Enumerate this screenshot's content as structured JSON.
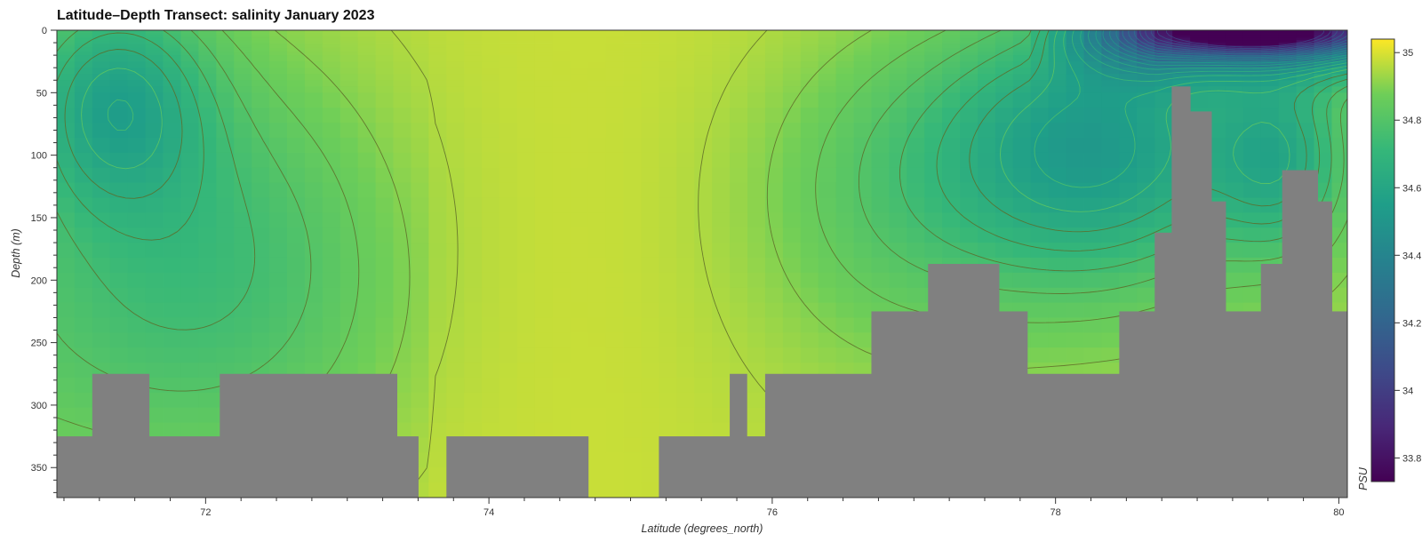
{
  "chart_data": {
    "type": "heatmap",
    "title": "Latitude–Depth Transect: salinity January 2023",
    "xlabel": "Latitude (degrees_north)",
    "ylabel": "Depth (m)",
    "colorbar_label": "PSU",
    "colormap": "viridis",
    "xlim": [
      70.95,
      80.06
    ],
    "ylim": [
      374,
      0
    ],
    "x_ticks": [
      72,
      74,
      76,
      78,
      80
    ],
    "y_ticks": [
      0,
      50,
      100,
      150,
      200,
      250,
      300,
      350
    ],
    "color_range": [
      33.73,
      35.04
    ],
    "colorbar_ticks": [
      33.8,
      34,
      34.2,
      34.4,
      34.6,
      34.8,
      35
    ],
    "land_color": "#808080",
    "bathymetry": [
      {
        "lat_from": 70.95,
        "lat_to": 71.2,
        "bottom_depth": 325
      },
      {
        "lat_from": 71.2,
        "lat_to": 71.6,
        "bottom_depth": 275
      },
      {
        "lat_from": 71.6,
        "lat_to": 72.1,
        "bottom_depth": 325
      },
      {
        "lat_from": 72.1,
        "lat_to": 73.35,
        "bottom_depth": 275
      },
      {
        "lat_from": 73.35,
        "lat_to": 73.5,
        "bottom_depth": 325
      },
      {
        "lat_from": 73.5,
        "lat_to": 73.7,
        "bottom_depth": 374
      },
      {
        "lat_from": 73.7,
        "lat_to": 74.7,
        "bottom_depth": 325
      },
      {
        "lat_from": 74.7,
        "lat_to": 75.2,
        "bottom_depth": 374
      },
      {
        "lat_from": 75.2,
        "lat_to": 75.7,
        "bottom_depth": 325
      },
      {
        "lat_from": 75.7,
        "lat_to": 75.82,
        "bottom_depth": 275
      },
      {
        "lat_from": 75.82,
        "lat_to": 75.95,
        "bottom_depth": 325
      },
      {
        "lat_from": 75.95,
        "lat_to": 76.7,
        "bottom_depth": 275
      },
      {
        "lat_from": 76.7,
        "lat_to": 77.1,
        "bottom_depth": 225
      },
      {
        "lat_from": 77.1,
        "lat_to": 77.6,
        "bottom_depth": 187
      },
      {
        "lat_from": 77.6,
        "lat_to": 77.8,
        "bottom_depth": 225
      },
      {
        "lat_from": 77.8,
        "lat_to": 78.45,
        "bottom_depth": 275
      },
      {
        "lat_from": 78.45,
        "lat_to": 78.7,
        "bottom_depth": 225
      },
      {
        "lat_from": 78.7,
        "lat_to": 78.82,
        "bottom_depth": 162
      },
      {
        "lat_from": 78.82,
        "lat_to": 78.95,
        "bottom_depth": 45
      },
      {
        "lat_from": 78.95,
        "lat_to": 79.1,
        "bottom_depth": 65
      },
      {
        "lat_from": 79.1,
        "lat_to": 79.2,
        "bottom_depth": 137
      },
      {
        "lat_from": 79.2,
        "lat_to": 79.45,
        "bottom_depth": 225
      },
      {
        "lat_from": 79.45,
        "lat_to": 79.6,
        "bottom_depth": 187
      },
      {
        "lat_from": 79.6,
        "lat_to": 79.85,
        "bottom_depth": 112
      },
      {
        "lat_from": 79.85,
        "lat_to": 79.95,
        "bottom_depth": 137
      },
      {
        "lat_from": 79.95,
        "lat_to": 80.06,
        "bottom_depth": 225
      }
    ]
  }
}
